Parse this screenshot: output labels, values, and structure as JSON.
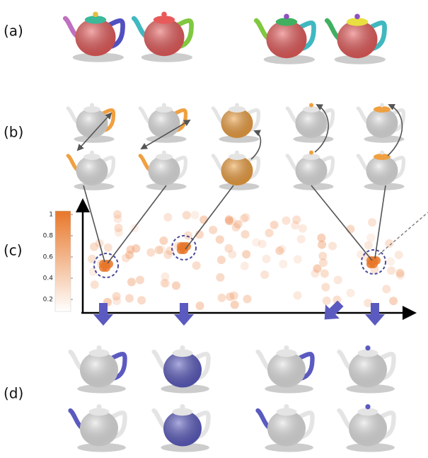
{
  "labels": {
    "a": "(a)",
    "b": "(b)",
    "c": "(c)",
    "d": "(d)"
  },
  "colorbar": {
    "ticks": [
      1,
      0.8,
      0.6,
      0.4,
      0.2
    ]
  }
}
